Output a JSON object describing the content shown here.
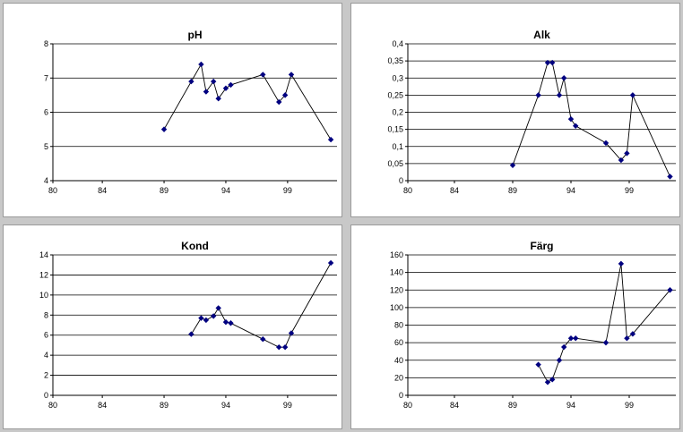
{
  "chart_data": [
    {
      "type": "line",
      "title": "pH",
      "xlabel": "",
      "ylabel": "",
      "xlim": [
        80,
        103
      ],
      "ylim": [
        4,
        8
      ],
      "xticks": [
        80,
        84,
        89,
        94,
        99
      ],
      "yticks": [
        4,
        5,
        6,
        7,
        8
      ],
      "ytick_labels": [
        "4",
        "5",
        "6",
        "7",
        "8"
      ],
      "grid": true,
      "marker_color": "#000080",
      "points": [
        {
          "x": 89,
          "y": 5.5
        },
        {
          "x": 91.2,
          "y": 6.9
        },
        {
          "x": 92,
          "y": 7.4
        },
        {
          "x": 92.4,
          "y": 6.6
        },
        {
          "x": 93,
          "y": 6.9
        },
        {
          "x": 93.4,
          "y": 6.4
        },
        {
          "x": 94,
          "y": 6.7
        },
        {
          "x": 94.4,
          "y": 6.8
        },
        {
          "x": 97,
          "y": 7.1
        },
        {
          "x": 98.3,
          "y": 6.3
        },
        {
          "x": 98.8,
          "y": 6.5
        },
        {
          "x": 99.3,
          "y": 7.1
        },
        {
          "x": 102.5,
          "y": 5.2
        }
      ]
    },
    {
      "type": "line",
      "title": "Alk",
      "xlabel": "",
      "ylabel": "",
      "xlim": [
        80,
        103
      ],
      "ylim": [
        0,
        0.4
      ],
      "xticks": [
        80,
        84,
        89,
        94,
        99
      ],
      "yticks": [
        0,
        0.05,
        0.1,
        0.15,
        0.2,
        0.25,
        0.3,
        0.35,
        0.4
      ],
      "ytick_labels": [
        "0",
        "0,05",
        "0,1",
        "0,15",
        "0,2",
        "0,25",
        "0,3",
        "0,35",
        "0,4"
      ],
      "grid": true,
      "marker_color": "#000080",
      "points": [
        {
          "x": 89,
          "y": 0.045
        },
        {
          "x": 91.2,
          "y": 0.25
        },
        {
          "x": 92,
          "y": 0.345
        },
        {
          "x": 92.4,
          "y": 0.345
        },
        {
          "x": 93,
          "y": 0.25
        },
        {
          "x": 93.4,
          "y": 0.3
        },
        {
          "x": 94,
          "y": 0.18
        },
        {
          "x": 94.4,
          "y": 0.16
        },
        {
          "x": 97,
          "y": 0.11
        },
        {
          "x": 98.3,
          "y": 0.06
        },
        {
          "x": 98.8,
          "y": 0.08
        },
        {
          "x": 99.3,
          "y": 0.25
        },
        {
          "x": 102.5,
          "y": 0.012
        }
      ]
    },
    {
      "type": "line",
      "title": "Kond",
      "xlabel": "",
      "ylabel": "",
      "xlim": [
        80,
        103
      ],
      "ylim": [
        0,
        14
      ],
      "xticks": [
        80,
        84,
        89,
        94,
        99
      ],
      "yticks": [
        0,
        2,
        4,
        6,
        8,
        10,
        12,
        14
      ],
      "ytick_labels": [
        "0",
        "2",
        "4",
        "6",
        "8",
        "10",
        "12",
        "14"
      ],
      "grid": true,
      "marker_color": "#000080",
      "points": [
        {
          "x": 91.2,
          "y": 6.1
        },
        {
          "x": 92,
          "y": 7.7
        },
        {
          "x": 92.4,
          "y": 7.5
        },
        {
          "x": 93,
          "y": 7.9
        },
        {
          "x": 93.4,
          "y": 8.7
        },
        {
          "x": 94,
          "y": 7.3
        },
        {
          "x": 94.4,
          "y": 7.2
        },
        {
          "x": 97,
          "y": 5.6
        },
        {
          "x": 98.3,
          "y": 4.8
        },
        {
          "x": 98.8,
          "y": 4.8
        },
        {
          "x": 99.3,
          "y": 6.2
        },
        {
          "x": 102.5,
          "y": 13.2
        }
      ]
    },
    {
      "type": "line",
      "title": "Färg",
      "xlabel": "",
      "ylabel": "",
      "xlim": [
        80,
        103
      ],
      "ylim": [
        0,
        160
      ],
      "xticks": [
        80,
        84,
        89,
        94,
        99
      ],
      "yticks": [
        0,
        20,
        40,
        60,
        80,
        100,
        120,
        140,
        160
      ],
      "ytick_labels": [
        "0",
        "20",
        "40",
        "60",
        "80",
        "100",
        "120",
        "140",
        "160"
      ],
      "grid": true,
      "marker_color": "#000080",
      "points": [
        {
          "x": 91.2,
          "y": 35
        },
        {
          "x": 92,
          "y": 15
        },
        {
          "x": 92.4,
          "y": 18
        },
        {
          "x": 93,
          "y": 40
        },
        {
          "x": 93.4,
          "y": 55
        },
        {
          "x": 94,
          "y": 65
        },
        {
          "x": 94.4,
          "y": 65
        },
        {
          "x": 97,
          "y": 60
        },
        {
          "x": 98.3,
          "y": 150
        },
        {
          "x": 98.8,
          "y": 65
        },
        {
          "x": 99.3,
          "y": 70
        },
        {
          "x": 102.5,
          "y": 120
        }
      ]
    }
  ]
}
